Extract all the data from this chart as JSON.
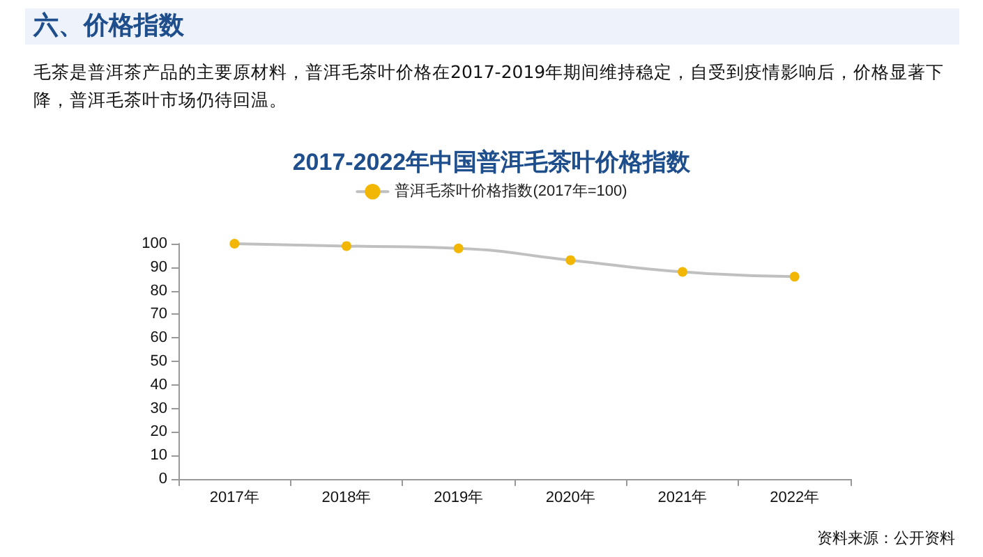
{
  "chart_data": {
    "type": "line",
    "title": "2017-2022年中国普洱毛茶叶价格指数",
    "annotations": [
      "六、价格指数",
      "毛茶是普洱茶产品的主要原材料，普洱毛茶叶价格在2017-2019年期间维持稳定，自受到疫情影响后，价格显著下降，普洱毛茶叶市场仍待回温。",
      "资料来源：公开资料"
    ],
    "categories": [
      "2017年",
      "2018年",
      "2019年",
      "2020年",
      "2021年",
      "2022年"
    ],
    "series": [
      {
        "name": "普洱毛茶叶价格指数(2017年=100)",
        "color": "#f2b705",
        "values": [
          100,
          99,
          98,
          93,
          88,
          86
        ]
      }
    ],
    "ylim": [
      0,
      100
    ],
    "yticks": [
      0,
      10,
      20,
      30,
      40,
      50,
      60,
      70,
      80,
      90,
      100
    ],
    "grid": false,
    "legend": "top",
    "marker": "circle",
    "line_style": "solid"
  }
}
